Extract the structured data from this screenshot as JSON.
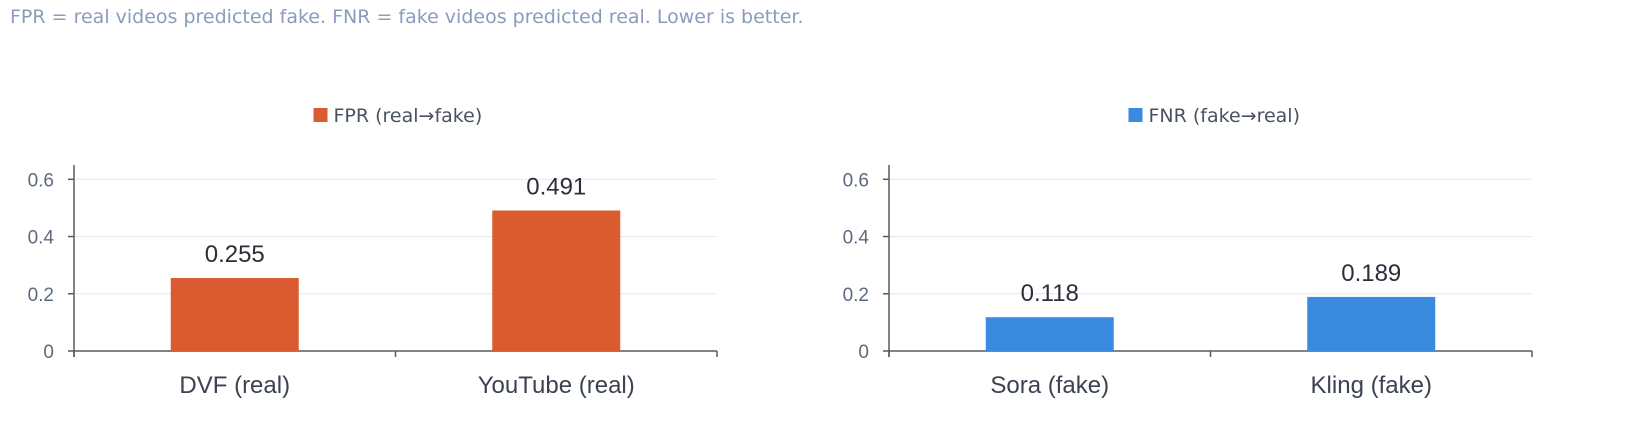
{
  "caption": "FPR = real videos predicted fake. FNR = fake videos predicted real. Lower is better.",
  "colors": {
    "fpr": "#d95b2f",
    "fnr": "#3a8ae0",
    "axis": "#555a63",
    "grid": "#e6e8ec"
  },
  "chart_data": [
    {
      "type": "bar",
      "categories": [
        "DVF (real)",
        "YouTube (real)"
      ],
      "series": [
        {
          "name": "FPR (real→fake)",
          "values": [
            0.255,
            0.491
          ],
          "color": "#d95b2f"
        }
      ],
      "data_labels": [
        "0.255",
        "0.491"
      ],
      "ylim": [
        0,
        0.65
      ],
      "yticks": [
        0,
        0.2,
        0.4,
        0.6
      ],
      "ytick_labels": [
        "0",
        "0.2",
        "0.4",
        "0.6"
      ],
      "grid": true,
      "legend_position": "top-center",
      "xlabel": "",
      "ylabel": ""
    },
    {
      "type": "bar",
      "categories": [
        "Sora (fake)",
        "Kling (fake)"
      ],
      "series": [
        {
          "name": "FNR (fake→real)",
          "values": [
            0.118,
            0.189
          ],
          "color": "#3a8ae0"
        }
      ],
      "data_labels": [
        "0.118",
        "0.189"
      ],
      "ylim": [
        0,
        0.65
      ],
      "yticks": [
        0,
        0.2,
        0.4,
        0.6
      ],
      "ytick_labels": [
        "0",
        "0.2",
        "0.4",
        "0.6"
      ],
      "grid": true,
      "legend_position": "top-center",
      "xlabel": "",
      "ylabel": ""
    }
  ]
}
